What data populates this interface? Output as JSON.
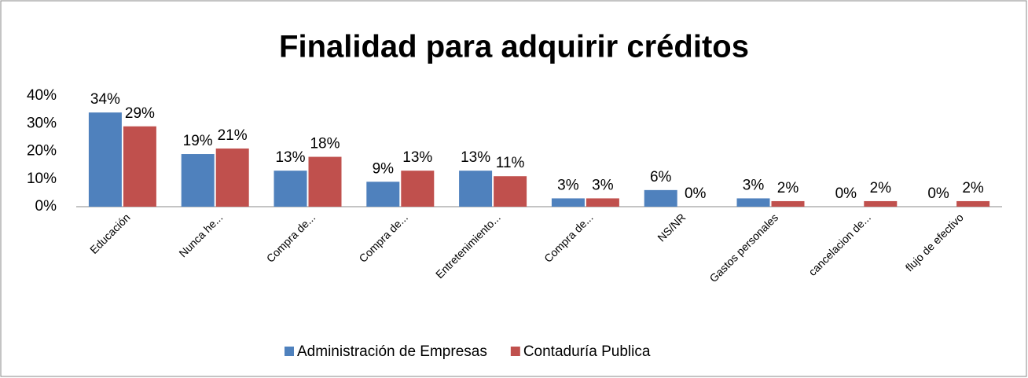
{
  "chart_data": {
    "type": "bar",
    "title": "Finalidad para adquirir créditos",
    "categories": [
      "Educación",
      "Nunca he...",
      "Compra de...",
      "Compra de...",
      "Entretenimiento...",
      "Compra de...",
      "NS/NR",
      "Gastos personales",
      "cancelacion de...",
      "flujo de efectivo"
    ],
    "series": [
      {
        "name": "Administración de Empresas",
        "color": "#4f81bd",
        "values": [
          34,
          19,
          13,
          9,
          13,
          3,
          6,
          3,
          0,
          0
        ],
        "value_labels": [
          "34%",
          "19%",
          "13%",
          "9%",
          "13%",
          "3%",
          "6%",
          "3%",
          "0%",
          "0%"
        ]
      },
      {
        "name": "Contaduría Publica",
        "color": "#c0504d",
        "values": [
          29,
          21,
          18,
          13,
          11,
          3,
          0,
          2,
          2,
          2
        ],
        "value_labels": [
          "29%",
          "21%",
          "18%",
          "13%",
          "11%",
          "3%",
          "0%",
          "2%",
          "2%",
          "2%"
        ]
      }
    ],
    "ylim": [
      0,
      40
    ],
    "yticks": [
      {
        "value": 0,
        "label": "0%"
      },
      {
        "value": 10,
        "label": "10%"
      },
      {
        "value": 20,
        "label": "20%"
      },
      {
        "value": 30,
        "label": "30%"
      },
      {
        "value": 40,
        "label": "40%"
      }
    ],
    "legend": "bottom"
  }
}
